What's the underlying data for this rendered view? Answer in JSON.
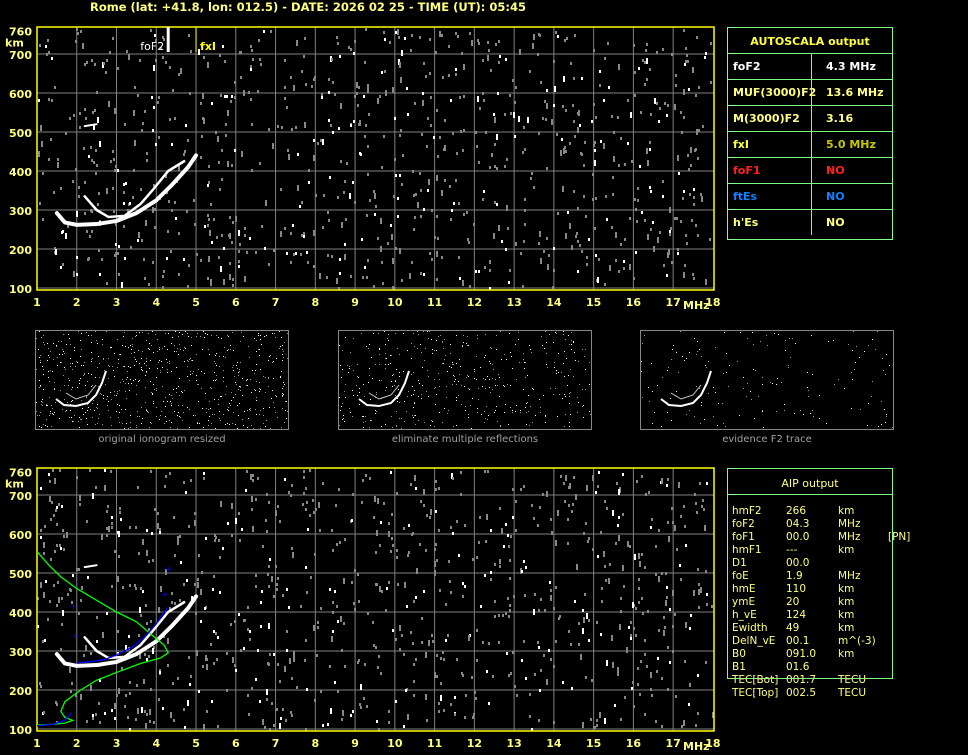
{
  "header": {
    "title": "Rome (lat: +41.8, lon: 012.5) - DATE: 2026 02 25 - TIME (UT): 05:45"
  },
  "axes": {
    "y_unit": "km",
    "x_unit": "MHz",
    "y_ticks": [
      "760",
      "700",
      "600",
      "500",
      "400",
      "300",
      "200",
      "100"
    ],
    "x_ticks": [
      "1",
      "2",
      "3",
      "4",
      "5",
      "6",
      "7",
      "8",
      "9",
      "10",
      "11",
      "12",
      "13",
      "14",
      "15",
      "16",
      "17",
      "18"
    ]
  },
  "markers": {
    "foF2_label": "foF2",
    "foF2_value": 4.3,
    "fxI_label": "fxI",
    "fxI_value": 5.0
  },
  "autoscala": {
    "title": "AUTOSCALA output",
    "rows": [
      {
        "key": "foF2",
        "value": "4.3 MHz",
        "key_color": "#ffffff",
        "value_color": "#ffffff"
      },
      {
        "key": "MUF(3000)F2",
        "value": "13.6 MHz",
        "key_color": "#ffff80",
        "value_color": "#ffff80"
      },
      {
        "key": "M(3000)F2",
        "value": "3.16",
        "key_color": "#ffff80",
        "value_color": "#ffff80"
      },
      {
        "key": "fxI",
        "value": "5.0 MHz",
        "key_color": "#ffff40",
        "value_color": "#c8c800"
      },
      {
        "key": "foF1",
        "value": "NO",
        "key_color": "#ff2020",
        "value_color": "#ff2020"
      },
      {
        "key": "ftEs",
        "value": "NO",
        "key_color": "#1080ff",
        "value_color": "#1080ff"
      },
      {
        "key": "h'Es",
        "value": "NO",
        "key_color": "#ffff80",
        "value_color": "#ffff80"
      }
    ]
  },
  "thumbnails": [
    {
      "caption": "original ionogram resized"
    },
    {
      "caption": "eliminate multiple reflections"
    },
    {
      "caption": "evidence F2 trace"
    }
  ],
  "aip": {
    "title": "AIP output",
    "rows": [
      [
        "hmF2",
        "266",
        "km",
        ""
      ],
      [
        "foF2",
        "04.3",
        "MHz",
        ""
      ],
      [
        "foF1",
        "00.0",
        "MHz",
        "[PN]"
      ],
      [
        "hmF1",
        "---",
        "km",
        ""
      ],
      [
        "D1",
        "00.0",
        "",
        ""
      ],
      [
        "foE",
        "1.9",
        "MHz",
        ""
      ],
      [
        "hmE",
        "110",
        "km",
        ""
      ],
      [
        "ymE",
        "20",
        "km",
        ""
      ],
      [
        "h_vE",
        "124",
        "km",
        ""
      ],
      [
        "Ewidth",
        "49",
        "km",
        ""
      ],
      [
        "DelN_vE",
        "00.1",
        "m^(-3)",
        ""
      ],
      [
        "B0",
        "091.0",
        "km",
        ""
      ],
      [
        "B1",
        "01.6",
        "",
        ""
      ],
      [
        "TEC[Bot]",
        "001.7",
        "TECU",
        ""
      ],
      [
        "TEC[Top]",
        "002.5",
        "TECU",
        ""
      ]
    ]
  },
  "colors": {
    "axis": "#ffff00",
    "grid": "#808080",
    "table_border": "#80ff80",
    "profile": "#00ff00",
    "fit": "#0000ff",
    "trace": "#ffffff"
  }
}
